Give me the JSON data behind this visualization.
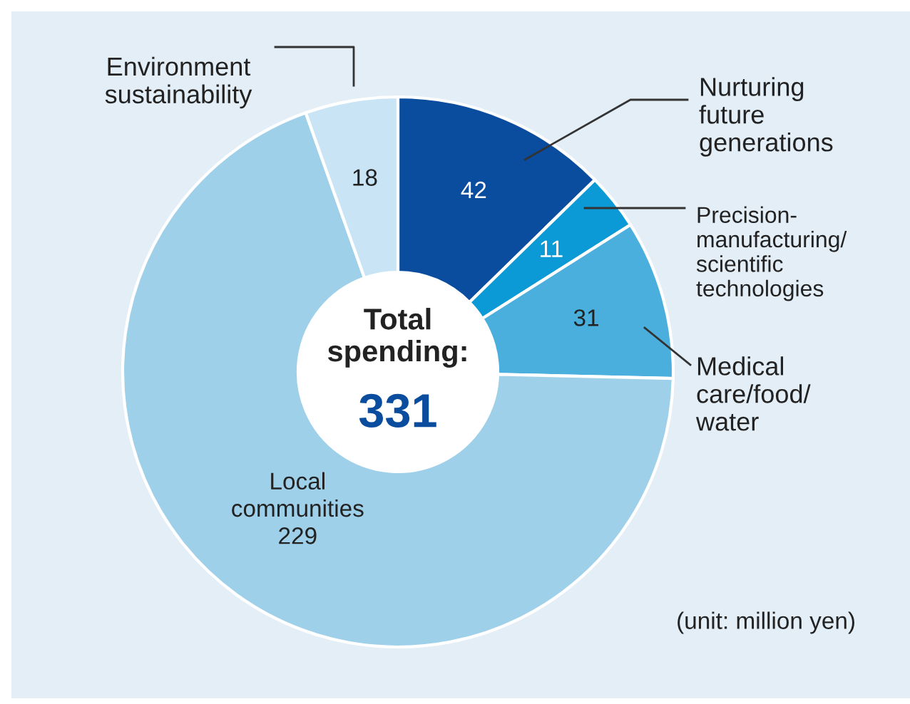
{
  "chart_data": {
    "type": "donut",
    "title": "Total\nspending:",
    "subtitle": "331",
    "categories": [
      "Nurturing\nfuture\ngenerations",
      "Precision-\nmanufacturing/\nscientific\ntechnologies",
      "Medical\ncare/food/\nwater",
      "Local\ncommunities",
      "Environment\nsustainability"
    ],
    "values": [
      42,
      11,
      31,
      229,
      18
    ],
    "colors": [
      "#0a4c9e",
      "#0b9ad6",
      "#4aafdd",
      "#9fd0ea",
      "#c9e5f5"
    ],
    "data_labels": true,
    "annotations": [
      "(unit: million yen)"
    ]
  }
}
